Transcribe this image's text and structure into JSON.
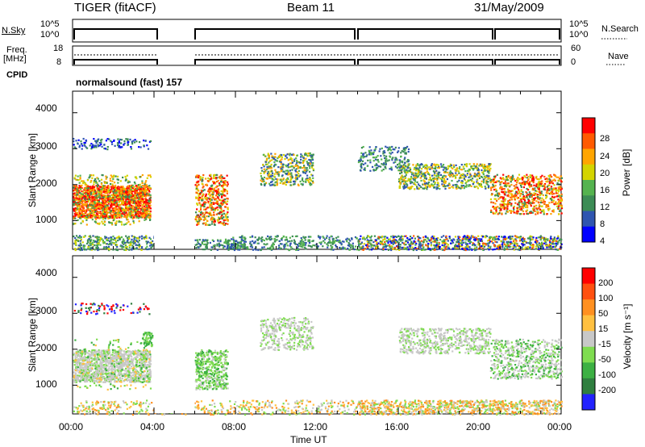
{
  "header": {
    "station": "TIGER (fitACF)",
    "beam": "Beam 11",
    "date": "31/May/2009"
  },
  "top_panels": {
    "nsky_label": "N.Sky",
    "nsky_ticks": [
      "10^5",
      "10^0"
    ],
    "nsearch_label": "N.Search",
    "nsearch_ticks": [
      "10^5",
      "10^0"
    ],
    "freq_label": "Freq.",
    "freq_unit": "[MHz]",
    "freq_ticks": [
      "18",
      "8"
    ],
    "nave_label": "Nave",
    "nave_ticks": [
      "60",
      "0"
    ],
    "cpid_label": "CPID",
    "cpid_value": "normalsound (fast) 157"
  },
  "chart_data": [
    {
      "type": "heatmap",
      "name": "power-panel",
      "ylabel": "Slant Range [km]",
      "yticks": [
        "4000",
        "3000",
        "2000",
        "1000"
      ],
      "ylim": [
        200,
        4600
      ],
      "xlim_hours": [
        0,
        24
      ],
      "data_gap_hours": [
        [
          4,
          6
        ]
      ],
      "colorbar": {
        "label": "Power [dB]",
        "ticks": [
          "28",
          "24",
          "20",
          "16",
          "12",
          "8",
          "4"
        ],
        "colors": [
          "#0000ff",
          "#2f55b0",
          "#3c8c55",
          "#55b34f",
          "#d4d400",
          "#ffa500",
          "#ff5a00",
          "#ff0000"
        ]
      }
    },
    {
      "type": "heatmap",
      "name": "velocity-panel",
      "ylabel": "Slant Range [km]",
      "yticks": [
        "4000",
        "3000",
        "2000",
        "1000"
      ],
      "ylim": [
        200,
        4600
      ],
      "xlim_hours": [
        0,
        24
      ],
      "data_gap_hours": [
        [
          4,
          6
        ]
      ],
      "colorbar": {
        "label": "Velocity [m s⁻¹]",
        "ticks": [
          "200",
          "100",
          "50",
          "15",
          "-15",
          "-50",
          "-100",
          "-200"
        ],
        "colors": [
          "#2222ff",
          "#2f7f3f",
          "#3cb043",
          "#7fdc50",
          "#c8c8c8",
          "#ffc040",
          "#ff9020",
          "#ff5010",
          "#ff0000"
        ]
      }
    }
  ],
  "xaxis": {
    "label": "Time UT",
    "ticks": [
      "00:00",
      "04:00",
      "08:00",
      "12:00",
      "16:00",
      "20:00",
      "00:00"
    ]
  }
}
